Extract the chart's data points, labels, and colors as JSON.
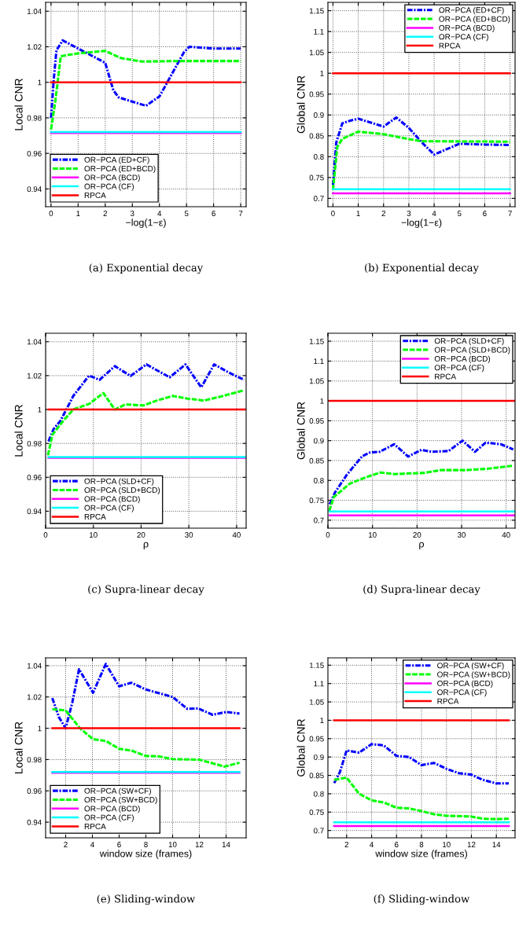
{
  "chart_data": [
    {
      "type": "line",
      "xlabel": "−log(1−ε)",
      "ylabel": "Local CNR",
      "xlim": [
        -0.2,
        7.2
      ],
      "xticks": [
        0,
        1,
        2,
        3,
        4,
        5,
        6,
        7
      ],
      "ylim": [
        0.93,
        1.045
      ],
      "yticks": [
        0.94,
        0.96,
        0.98,
        1,
        1.02,
        1.04
      ],
      "grid": true,
      "legend": "bottom left",
      "annotations": [
        "(a) Exponential decay"
      ],
      "series": [
        {
          "name": "OR−PCA (ED+CF)",
          "color": "#0000ff",
          "line_style": "dashdot",
          "x": [
            0,
            0.1,
            0.2,
            0.43,
            1.0,
            2.0,
            2.3,
            2.5,
            3.5,
            4.0,
            4.9,
            5.1,
            6.0,
            7.0
          ],
          "values": [
            0.98,
            1.0015,
            1.018,
            1.0236,
            1.019,
            1.011,
            0.9955,
            0.9915,
            0.9868,
            0.992,
            1.0168,
            1.02,
            1.019,
            1.019
          ]
        },
        {
          "name": "OR−PCA (ED+BCD)",
          "color": "#00ff00",
          "line_style": "dashed",
          "x": [
            0,
            0.16,
            0.36,
            1.0,
            2.0,
            2.57,
            3.34,
            4.9,
            7.0
          ],
          "values": [
            0.9735,
            0.9895,
            1.0147,
            1.0163,
            1.0177,
            1.0137,
            1.0117,
            1.012,
            1.012
          ]
        },
        {
          "name": "OR−PCA (BCD)",
          "color": "#ff00ff",
          "line_style": "solid",
          "x": [
            0,
            7
          ],
          "values": [
            0.9715,
            0.9715
          ]
        },
        {
          "name": "OR−PCA (CF)",
          "color": "#00ffff",
          "line_style": "solid",
          "x": [
            0,
            7
          ],
          "values": [
            0.972,
            0.972
          ]
        },
        {
          "name": "RPCA",
          "color": "#ff0000",
          "line_style": "solid",
          "x": [
            0,
            7
          ],
          "values": [
            1.0,
            1.0
          ]
        }
      ]
    },
    {
      "type": "line",
      "xlabel": "−log(1−ε)",
      "ylabel": "Global CNR",
      "xlim": [
        -0.2,
        7.2
      ],
      "xticks": [
        0,
        1,
        2,
        3,
        4,
        5,
        6,
        7
      ],
      "ylim": [
        0.68,
        1.17
      ],
      "yticks": [
        0.7,
        0.75,
        0.8,
        0.85,
        0.9,
        0.95,
        1,
        1.05,
        1.1,
        1.15
      ],
      "grid": true,
      "legend": "top right",
      "annotations": [
        "(b) Exponential decay"
      ],
      "series": [
        {
          "name": "OR−PCA (ED+CF)",
          "color": "#0000ff",
          "line_style": "dashdot",
          "x": [
            0,
            0.13,
            0.37,
            0.66,
            1.0,
            2.0,
            2.5,
            3.0,
            3.5,
            4.0,
            5.0,
            6.0,
            7.0
          ],
          "values": [
            0.732,
            0.834,
            0.88,
            0.886,
            0.891,
            0.872,
            0.894,
            0.869,
            0.835,
            0.805,
            0.831,
            0.829,
            0.828
          ]
        },
        {
          "name": "OR−PCA (ED+BCD)",
          "color": "#00ff00",
          "line_style": "dashed",
          "x": [
            0,
            0.17,
            0.37,
            1.0,
            2.0,
            3.0,
            3.5,
            7.0
          ],
          "values": [
            0.72,
            0.823,
            0.843,
            0.86,
            0.854,
            0.842,
            0.837,
            0.836
          ]
        },
        {
          "name": "OR−PCA (BCD)",
          "color": "#ff00ff",
          "line_style": "solid",
          "x": [
            0,
            7
          ],
          "values": [
            0.712,
            0.712
          ]
        },
        {
          "name": "OR−PCA (CF)",
          "color": "#00ffff",
          "line_style": "solid",
          "x": [
            0,
            7
          ],
          "values": [
            0.722,
            0.722
          ]
        },
        {
          "name": "RPCA",
          "color": "#ff0000",
          "line_style": "solid",
          "x": [
            0,
            7
          ],
          "values": [
            1.0,
            1.0
          ]
        }
      ]
    },
    {
      "type": "line",
      "xlabel": "ρ",
      "ylabel": "Local CNR",
      "xlim": [
        0,
        42
      ],
      "xticks": [
        0,
        10,
        20,
        30,
        40
      ],
      "ylim": [
        0.93,
        1.045
      ],
      "yticks": [
        0.94,
        0.96,
        0.98,
        1,
        1.02,
        1.04
      ],
      "grid": true,
      "legend": "bottom left",
      "annotations": [
        "(c) Supra-linear decay"
      ],
      "series": [
        {
          "name": "OR−PCA (SLD+CF)",
          "color": "#0000ff",
          "line_style": "dashdot",
          "x": [
            0.6,
            1.7,
            3.1,
            5.8,
            9.1,
            11.3,
            14.5,
            17.8,
            21.1,
            26.0,
            29.3,
            32.6,
            35.3,
            38.6,
            41.6
          ],
          "values": [
            0.9812,
            0.9886,
            0.9933,
            1.008,
            1.02,
            1.0175,
            1.0256,
            1.0198,
            1.0266,
            1.019,
            1.0266,
            1.0131,
            1.0266,
            1.0215,
            1.0175
          ]
        },
        {
          "name": "OR−PCA (SLD+BCD)",
          "color": "#00ff00",
          "line_style": "dashed",
          "x": [
            0.5,
            1.4,
            3.6,
            5.8,
            9.1,
            12.1,
            14.5,
            16.7,
            20.5,
            23.3,
            26.6,
            29.8,
            33.1,
            36.4,
            41.6
          ],
          "values": [
            0.973,
            0.985,
            0.993,
            1.0,
            1.0033,
            1.0097,
            1.0,
            1.003,
            1.0024,
            1.0053,
            1.008,
            1.0064,
            1.0053,
            1.0074,
            1.0114
          ]
        },
        {
          "name": "OR−PCA (BCD)",
          "color": "#ff00ff",
          "line_style": "solid",
          "x": [
            0.6,
            42
          ],
          "values": [
            0.9715,
            0.9715
          ]
        },
        {
          "name": "OR−PCA (CF)",
          "color": "#00ffff",
          "line_style": "solid",
          "x": [
            0.6,
            42
          ],
          "values": [
            0.972,
            0.972
          ]
        },
        {
          "name": "RPCA",
          "color": "#ff0000",
          "line_style": "solid",
          "x": [
            0.6,
            42
          ],
          "values": [
            1.0,
            1.0
          ]
        }
      ]
    },
    {
      "type": "line",
      "xlabel": "ρ",
      "ylabel": "Global CNR",
      "xlim": [
        0,
        42
      ],
      "xticks": [
        0,
        10,
        20,
        30,
        40
      ],
      "ylim": [
        0.68,
        1.17
      ],
      "yticks": [
        0.7,
        0.75,
        0.8,
        0.85,
        0.9,
        0.95,
        1,
        1.05,
        1.1,
        1.15
      ],
      "grid": true,
      "legend": "top right",
      "annotations": [
        "(d) Supra-linear decay"
      ],
      "series": [
        {
          "name": "OR−PCA (SLD+CF)",
          "color": "#0000ff",
          "line_style": "dashdot",
          "x": [
            0.4,
            1.6,
            4.3,
            7.7,
            9.4,
            11.6,
            14.9,
            18.0,
            21.0,
            23.2,
            27.1,
            30.2,
            33.0,
            35.4,
            38.8,
            41.6
          ],
          "values": [
            0.74,
            0.77,
            0.815,
            0.861,
            0.87,
            0.872,
            0.891,
            0.86,
            0.877,
            0.872,
            0.874,
            0.9,
            0.872,
            0.895,
            0.891,
            0.878
          ]
        },
        {
          "name": "OR−PCA (SLD+BCD)",
          "color": "#00ff00",
          "line_style": "dashed",
          "x": [
            0.3,
            1.3,
            4.9,
            8.8,
            11.8,
            14.9,
            21.6,
            25.4,
            31.0,
            35.4,
            41.6
          ],
          "values": [
            0.723,
            0.758,
            0.792,
            0.809,
            0.82,
            0.816,
            0.819,
            0.826,
            0.826,
            0.829,
            0.837
          ]
        },
        {
          "name": "OR−PCA (BCD)",
          "color": "#ff00ff",
          "line_style": "solid",
          "x": [
            0.4,
            42
          ],
          "values": [
            0.712,
            0.712
          ]
        },
        {
          "name": "OR−PCA (CF)",
          "color": "#00ffff",
          "line_style": "solid",
          "x": [
            0.4,
            42
          ],
          "values": [
            0.722,
            0.722
          ]
        },
        {
          "name": "RPCA",
          "color": "#ff0000",
          "line_style": "solid",
          "x": [
            0.4,
            42
          ],
          "values": [
            1.0,
            1.0
          ]
        }
      ]
    },
    {
      "type": "line",
      "xlabel": "window size (frames)",
      "ylabel": "Local CNR",
      "xlim": [
        0.5,
        15.5
      ],
      "xticks": [
        2,
        4,
        6,
        8,
        10,
        12,
        14
      ],
      "ylim": [
        0.93,
        1.045
      ],
      "yticks": [
        0.94,
        0.96,
        0.98,
        1,
        1.02,
        1.04
      ],
      "grid": true,
      "legend": "bottom left",
      "annotations": [
        "(e) Sliding-window"
      ],
      "series": [
        {
          "name": "OR−PCA (SW+CF)",
          "color": "#0000ff",
          "line_style": "dashdot",
          "x": [
            1,
            1.5,
            2,
            2.5,
            3,
            4.05,
            5,
            6,
            6.9,
            8,
            10,
            11.1,
            11.9,
            13,
            14,
            15
          ],
          "values": [
            1.0193,
            1.007,
            1.0,
            1.0166,
            1.0377,
            1.0227,
            1.0411,
            1.0268,
            1.0291,
            1.0248,
            1.02,
            1.0124,
            1.0127,
            1.0086,
            1.0104,
            1.0094
          ]
        },
        {
          "name": "OR−PCA (SW+BCD)",
          "color": "#00ff00",
          "line_style": "dashed",
          "x": [
            1,
            2,
            3.07,
            4.05,
            5,
            6,
            6.9,
            8,
            9,
            10,
            12,
            13.9,
            15
          ],
          "values": [
            1.0122,
            1.0114,
            1.0,
            0.993,
            0.9919,
            0.9869,
            0.9858,
            0.9823,
            0.982,
            0.9803,
            0.9799,
            0.9755,
            0.978
          ]
        },
        {
          "name": "OR−PCA (BCD)",
          "color": "#ff00ff",
          "line_style": "solid",
          "x": [
            1,
            15
          ],
          "values": [
            0.9715,
            0.9715
          ]
        },
        {
          "name": "OR−PCA (CF)",
          "color": "#00ffff",
          "line_style": "solid",
          "x": [
            1,
            15
          ],
          "values": [
            0.972,
            0.972
          ]
        },
        {
          "name": "RPCA",
          "color": "#ff0000",
          "line_style": "solid",
          "x": [
            1,
            15
          ],
          "values": [
            1.0,
            1.0
          ]
        }
      ]
    },
    {
      "type": "line",
      "xlabel": "window size (frames)",
      "ylabel": "Global CNR",
      "xlim": [
        0.5,
        15.5
      ],
      "xticks": [
        2,
        4,
        6,
        8,
        10,
        12,
        14
      ],
      "ylim": [
        0.68,
        1.17
      ],
      "yticks": [
        0.7,
        0.75,
        0.8,
        0.85,
        0.9,
        0.95,
        1,
        1.05,
        1.1,
        1.15
      ],
      "grid": true,
      "legend": "top right",
      "annotations": [
        "(f) Sliding-window"
      ],
      "series": [
        {
          "name": "OR−PCA (SW+CF)",
          "color": "#0000ff",
          "line_style": "dashdot",
          "x": [
            1,
            1.46,
            2,
            3,
            4,
            4.96,
            6,
            7,
            8,
            9,
            10,
            11,
            12,
            12.9,
            14,
            15
          ],
          "values": [
            0.829,
            0.859,
            0.918,
            0.912,
            0.935,
            0.932,
            0.903,
            0.9,
            0.878,
            0.884,
            0.868,
            0.856,
            0.852,
            0.838,
            0.828,
            0.828
          ]
        },
        {
          "name": "OR−PCA (SW+BCD)",
          "color": "#00ff00",
          "line_style": "dashed",
          "x": [
            1,
            2,
            3,
            4,
            5,
            6,
            7,
            8,
            9,
            10,
            12,
            12.9,
            14,
            15
          ],
          "values": [
            0.838,
            0.844,
            0.8,
            0.782,
            0.776,
            0.762,
            0.76,
            0.753,
            0.744,
            0.74,
            0.738,
            0.732,
            0.731,
            0.732
          ]
        },
        {
          "name": "OR−PCA (BCD)",
          "color": "#ff00ff",
          "line_style": "solid",
          "x": [
            1,
            15
          ],
          "values": [
            0.712,
            0.712
          ]
        },
        {
          "name": "OR−PCA (CF)",
          "color": "#00ffff",
          "line_style": "solid",
          "x": [
            1,
            15
          ],
          "values": [
            0.722,
            0.722
          ]
        },
        {
          "name": "RPCA",
          "color": "#ff0000",
          "line_style": "solid",
          "x": [
            1,
            15
          ],
          "values": [
            1.0,
            1.0
          ]
        }
      ]
    }
  ]
}
